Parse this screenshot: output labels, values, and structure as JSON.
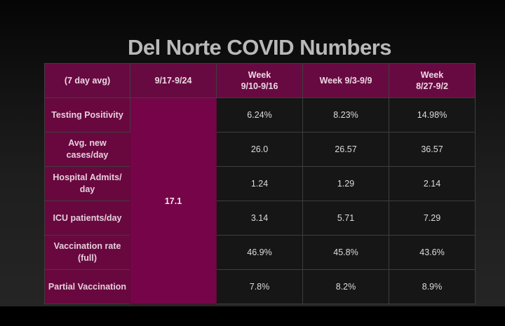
{
  "title": "Del Norte COVID Numbers",
  "header": [
    "(7 day avg)",
    "9/17-9/24",
    "Week\n9/10-9/16",
    "Week 9/3-9/9",
    "Week\n8/27-9/2"
  ],
  "rows": [
    {
      "label": "Testing Positivity",
      "current": "",
      "values": [
        "6.24%",
        "8.23%",
        "14.98%"
      ]
    },
    {
      "label": "Avg. new cases/day",
      "current": "17.1",
      "values": [
        "26.0",
        "26.57",
        "36.57"
      ]
    },
    {
      "label": "Hospital Admits/\nday",
      "current": "",
      "values": [
        "1.24",
        "1.29",
        "2.14"
      ]
    },
    {
      "label": "ICU patients/day",
      "current": "",
      "values": [
        "3.14",
        "5.71",
        "7.29"
      ]
    },
    {
      "label": "Vaccination rate\n(full)",
      "current": "",
      "values": [
        "46.9%",
        "45.8%",
        "43.6%"
      ]
    },
    {
      "label": "Partial Vaccination",
      "current": "",
      "values": [
        "7.8%",
        "8.2%",
        "8.9%"
      ]
    }
  ]
}
